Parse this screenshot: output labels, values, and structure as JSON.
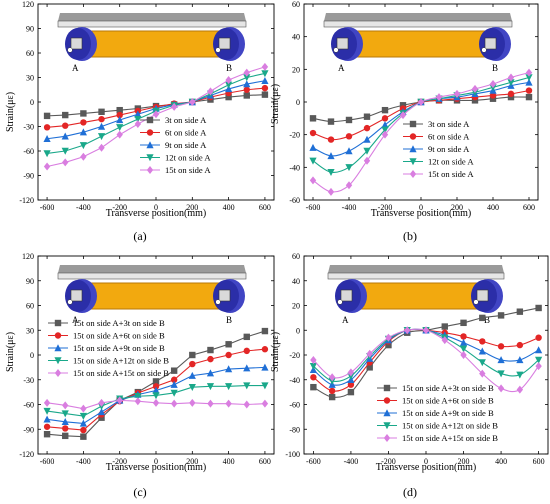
{
  "colors": {
    "s1": "#595959",
    "s2": "#e32626",
    "s3": "#1f6fd6",
    "s4": "#1aa88a",
    "s5": "#d97ee0",
    "beam": "#f2a90f",
    "beam_edge": "#b8790a",
    "wheel": "#2b2ea8",
    "deck": "#c8c8c8"
  },
  "chart_data": [
    {
      "panel_label": "(a)",
      "type": "line",
      "ylabel": "Strain(με)",
      "xlabel": "Transverse position(mm)",
      "xlim": [
        -650,
        650
      ],
      "ylim": [
        -120,
        120
      ],
      "xticks": [
        -600,
        -400,
        -200,
        0,
        200,
        400,
        600
      ],
      "yticks": [
        -120,
        -90,
        -60,
        -30,
        0,
        30,
        60,
        90,
        120
      ],
      "illustration_labels": [
        "A",
        "B"
      ],
      "legend_position": "lower-right",
      "x": [
        -600,
        -500,
        -400,
        -300,
        -200,
        -100,
        0,
        100,
        200,
        300,
        400,
        500,
        600
      ],
      "series": [
        {
          "name": "3t   on side A",
          "marker": "square",
          "values": [
            -17,
            -16,
            -14,
            -12,
            -10,
            -8,
            -5,
            -3,
            0,
            3,
            6,
            8,
            9
          ]
        },
        {
          "name": "6t   on side A",
          "marker": "circle",
          "values": [
            -31,
            -29,
            -25,
            -21,
            -16,
            -11,
            -6,
            -2,
            0,
            6,
            11,
            15,
            17
          ]
        },
        {
          "name": "9t   on side A",
          "marker": "triangle-up",
          "values": [
            -45,
            -42,
            -37,
            -30,
            -22,
            -15,
            -8,
            -3,
            0,
            8,
            16,
            22,
            26
          ]
        },
        {
          "name": "12t on side A",
          "marker": "triangle-down",
          "values": [
            -63,
            -60,
            -53,
            -42,
            -31,
            -21,
            -11,
            -4,
            0,
            10,
            21,
            30,
            35
          ]
        },
        {
          "name": "15t on side A",
          "marker": "diamond",
          "values": [
            -79,
            -74,
            -67,
            -56,
            -40,
            -27,
            -15,
            -6,
            0,
            13,
            27,
            36,
            43
          ]
        }
      ]
    },
    {
      "panel_label": "(b)",
      "type": "line",
      "ylabel": "Strain(με)",
      "xlabel": "Transverse position(mm)",
      "xlim": [
        -650,
        650
      ],
      "ylim": [
        -60,
        60
      ],
      "xticks": [
        -600,
        -400,
        -200,
        0,
        200,
        400,
        600
      ],
      "yticks": [
        -60,
        -40,
        -20,
        0,
        20,
        40,
        60
      ],
      "illustration_labels": [
        "A",
        "B"
      ],
      "legend_position": "right",
      "x": [
        -600,
        -500,
        -400,
        -300,
        -200,
        -100,
        0,
        100,
        200,
        300,
        400,
        500,
        600
      ],
      "series": [
        {
          "name": "3t   on side A",
          "marker": "square",
          "values": [
            -10,
            -12,
            -11,
            -9,
            -5,
            -2,
            0,
            1,
            1,
            1,
            2,
            3,
            3
          ]
        },
        {
          "name": "6t   on side A",
          "marker": "circle",
          "values": [
            -19,
            -23,
            -21,
            -16,
            -10,
            -4,
            0,
            1,
            2,
            3,
            4,
            5,
            7
          ]
        },
        {
          "name": "9t   on side A",
          "marker": "triangle-up",
          "values": [
            -28,
            -33,
            -30,
            -23,
            -14,
            -6,
            0,
            2,
            3,
            5,
            7,
            10,
            12
          ]
        },
        {
          "name": "12t on side A",
          "marker": "triangle-down",
          "values": [
            -36,
            -43,
            -40,
            -30,
            -17,
            -7,
            0,
            2,
            4,
            6,
            9,
            12,
            15
          ]
        },
        {
          "name": "15t on side A",
          "marker": "diamond",
          "values": [
            -48,
            -55,
            -51,
            -36,
            -20,
            -8,
            0,
            3,
            5,
            8,
            11,
            15,
            18
          ]
        }
      ]
    },
    {
      "panel_label": "(c)",
      "type": "line",
      "ylabel": "Strain(με)",
      "xlabel": "Transverse position(mm)",
      "xlim": [
        -650,
        650
      ],
      "ylim": [
        -120,
        120
      ],
      "xticks": [
        -600,
        -400,
        -200,
        0,
        200,
        400,
        600
      ],
      "yticks": [
        -120,
        -90,
        -60,
        -30,
        0,
        30,
        60,
        90,
        120
      ],
      "illustration_labels": [
        "A",
        "B"
      ],
      "legend_position": "left",
      "x": [
        -600,
        -500,
        -400,
        -300,
        -200,
        -100,
        0,
        100,
        200,
        300,
        400,
        500,
        600
      ],
      "series": [
        {
          "name": "15t on side A+3t on side B",
          "marker": "square",
          "values": [
            -96,
            -98,
            -99,
            -76,
            -55,
            -45,
            -32,
            -19,
            0,
            6,
            13,
            22,
            29
          ]
        },
        {
          "name": "15t on side A+6t on side B",
          "marker": "circle",
          "values": [
            -87,
            -89,
            -91,
            -72,
            -56,
            -46,
            -38,
            -30,
            -11,
            -5,
            0,
            5,
            7
          ]
        },
        {
          "name": "15t on side A+9t on side B",
          "marker": "triangle-up",
          "values": [
            -78,
            -81,
            -83,
            -69,
            -55,
            -48,
            -43,
            -36,
            -25,
            -22,
            -17,
            -16,
            -15
          ]
        },
        {
          "name": "15t on side A+12t on side B",
          "marker": "triangle-down",
          "values": [
            -68,
            -71,
            -74,
            -62,
            -53,
            -50,
            -49,
            -46,
            -39,
            -38,
            -38,
            -37,
            -37
          ]
        },
        {
          "name": "15t on side A+15t on side B",
          "marker": "diamond",
          "values": [
            -58,
            -61,
            -65,
            -58,
            -55,
            -56,
            -58,
            -59,
            -58,
            -59,
            -59,
            -60,
            -59
          ]
        }
      ]
    },
    {
      "panel_label": "(d)",
      "type": "line",
      "ylabel": "Strain(με)",
      "xlabel": "Transverse position(mm)",
      "xlim": [
        -650,
        650
      ],
      "ylim": [
        -100,
        60
      ],
      "xticks": [
        -600,
        -400,
        -200,
        0,
        200,
        400,
        600
      ],
      "yticks": [
        -100,
        -80,
        -60,
        -40,
        -20,
        0,
        20,
        40,
        60
      ],
      "illustration_labels": [
        "A",
        "B"
      ],
      "legend_position": "lower-right",
      "x": [
        -600,
        -500,
        -400,
        -300,
        -200,
        -100,
        0,
        100,
        200,
        300,
        400,
        500,
        600
      ],
      "series": [
        {
          "name": "15t on side A+3t on side B",
          "marker": "square",
          "values": [
            -46,
            -54,
            -50,
            -30,
            -12,
            -2,
            0,
            3,
            6,
            10,
            12,
            15,
            18
          ]
        },
        {
          "name": "15t on side A+6t on side B",
          "marker": "circle",
          "values": [
            -38,
            -49,
            -44,
            -26,
            -9,
            0,
            0,
            -2,
            -5,
            -9,
            -13,
            -12,
            -6
          ]
        },
        {
          "name": "15t on side A+9t on side B",
          "marker": "triangle-up",
          "values": [
            -32,
            -44,
            -40,
            -23,
            -8,
            0,
            0,
            -4,
            -10,
            -17,
            -24,
            -24,
            -16
          ]
        },
        {
          "name": "15t on side A+12t on side B",
          "marker": "triangle-down",
          "values": [
            -29,
            -41,
            -37,
            -21,
            -7,
            0,
            0,
            -6,
            -15,
            -26,
            -35,
            -36,
            -24
          ]
        },
        {
          "name": "15t on side A+15t on side B",
          "marker": "diamond",
          "values": [
            -24,
            -38,
            -34,
            -19,
            -6,
            0,
            0,
            -8,
            -20,
            -35,
            -47,
            -48,
            -29
          ]
        }
      ]
    }
  ]
}
